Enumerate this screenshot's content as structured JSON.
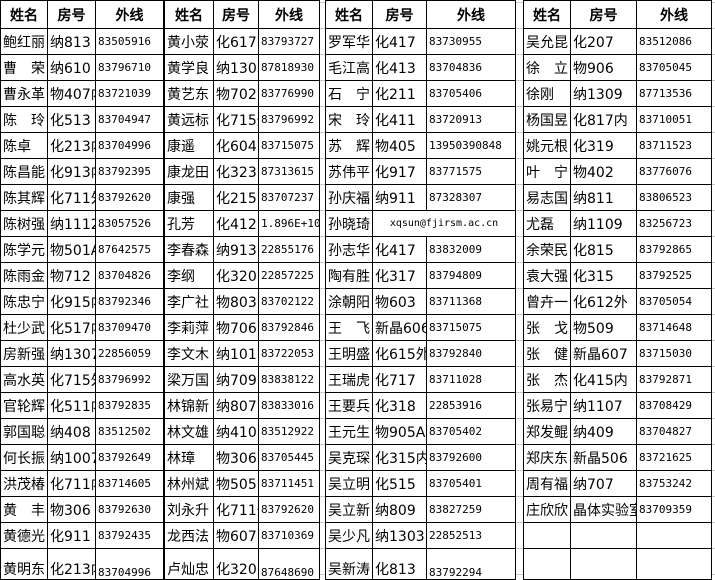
{
  "headers": {
    "name": "姓名",
    "room": "房号",
    "ext": "外线"
  },
  "groups": [
    {
      "rows": [
        [
          "鲍红丽",
          "纳813",
          "83505916"
        ],
        [
          "曹　荣",
          "纳610",
          "83796710"
        ],
        [
          "曹永革",
          "物407内",
          "83721039"
        ],
        [
          "陈　玲",
          "化513",
          "83704947"
        ],
        [
          "陈卓",
          "化213内",
          "83704996"
        ],
        [
          "陈昌能",
          "化913内",
          "83792395"
        ],
        [
          "陈其辉",
          "化711外",
          "83792620"
        ],
        [
          "陈树强",
          "纳1112",
          "83057526"
        ],
        [
          "陈学元",
          "物501A",
          "87642575"
        ],
        [
          "陈雨金",
          "物712",
          "83704826"
        ],
        [
          "陈忠宁",
          "化915内",
          "83792346"
        ],
        [
          "杜少武",
          "化517内",
          "83709470"
        ],
        [
          "房新强",
          "纳1307",
          "22856059"
        ],
        [
          "高水英",
          "化715外",
          "83796992"
        ],
        [
          "官轮辉",
          "化511内",
          "83792835"
        ],
        [
          "郭国聪",
          "纳408",
          "83512502"
        ],
        [
          "何长振",
          "纳1007",
          "83792649"
        ],
        [
          "洪茂椿",
          "化711内",
          "83714605"
        ],
        [
          "黄　丰",
          "物306",
          "83792630"
        ],
        [
          "黄德光",
          "化911",
          "83792435"
        ],
        [
          "黄明东",
          "化213内",
          "83704996"
        ]
      ]
    },
    {
      "rows": [
        [
          "黄小荥",
          "化617内",
          "83793727"
        ],
        [
          "黄学良",
          "纳1305",
          "87818930"
        ],
        [
          "黄艺东",
          "物702",
          "83776990"
        ],
        [
          "黄远标",
          "化715外",
          "83796992"
        ],
        [
          "康遥",
          "化604",
          "83715075"
        ],
        [
          "康龙田",
          "化323",
          "87313615"
        ],
        [
          "康强",
          "化215",
          "83707237"
        ],
        [
          "孔芳",
          "化412",
          "1.896E+10"
        ],
        [
          "李春森",
          "纳913",
          "22855176"
        ],
        [
          "李纲",
          "化320",
          "22857225"
        ],
        [
          "李广社",
          "物803",
          "83702122"
        ],
        [
          "李莉萍",
          "物706",
          "83792846"
        ],
        [
          "李文木",
          "纳1011",
          "83722053"
        ],
        [
          "梁万国",
          "纳709",
          "83838122"
        ],
        [
          "林锦新",
          "纳807",
          "83833016"
        ],
        [
          "林文雄",
          "纳410",
          "83512922"
        ],
        [
          "林璋",
          "物306",
          "83705445"
        ],
        [
          "林州斌",
          "物505",
          "83711451"
        ],
        [
          "刘永升",
          "化711外",
          "83792620"
        ],
        [
          "龙西法",
          "物607",
          "83710369"
        ],
        [
          "卢灿忠",
          "化320",
          "87648690"
        ]
      ]
    },
    {
      "rows": [
        [
          "罗军华",
          "化417",
          "83730955"
        ],
        [
          "毛江高",
          "化413",
          "83704836"
        ],
        [
          "石　宁",
          "化211",
          "83705406"
        ],
        [
          "宋　玲",
          "化411",
          "83720913"
        ],
        [
          "苏　辉",
          "物405",
          "13950390848"
        ],
        [
          "苏伟平",
          "化917",
          "83771575"
        ],
        [
          "孙庆福",
          "纳911",
          "87328307"
        ],
        [
          "孙晓琦",
          "xqsun@fjirsm.ac.cn",
          ""
        ],
        [
          "孙志华",
          "化417",
          "83832009"
        ],
        [
          "陶有胜",
          "化317",
          "83794809"
        ],
        [
          "涂朝阳",
          "物603",
          "83711368"
        ],
        [
          "王　飞",
          "新晶606",
          "83715075"
        ],
        [
          "王明盛",
          "化615外",
          "83792840"
        ],
        [
          "王瑞虎",
          "化717",
          "83711028"
        ],
        [
          "王要兵",
          "化318",
          "22853916"
        ],
        [
          "王元生",
          "物905A",
          "83705402"
        ],
        [
          "吴克琛",
          "化315内",
          "83792600"
        ],
        [
          "吴立明",
          "化515",
          "83705401"
        ],
        [
          "吴立新",
          "纳809",
          "83827259"
        ],
        [
          "吴少凡",
          "纳1303",
          "22852513"
        ],
        [
          "吴新涛",
          "化813",
          "83792294"
        ]
      ]
    },
    {
      "rows": [
        [
          "吴允昆",
          "化207",
          "83512086"
        ],
        [
          "徐　立",
          "物906",
          "83705045"
        ],
        [
          "徐刚",
          "纳1309",
          "87713536"
        ],
        [
          "杨国昱",
          "化817内",
          "83710051"
        ],
        [
          "姚元根",
          "化319",
          "83711523"
        ],
        [
          "叶　宁",
          "物402",
          "83776076"
        ],
        [
          "易志国",
          "纳811",
          "83806523"
        ],
        [
          "尤磊",
          "纳1109",
          "83256723"
        ],
        [
          "余荣民",
          "化815",
          "83792865"
        ],
        [
          "袁大强",
          "化315",
          "83792525"
        ],
        [
          "曾卉一",
          "化612外",
          "83705054"
        ],
        [
          "张　戈",
          "物509",
          "83714648"
        ],
        [
          "张　健",
          "新晶607",
          "83715030"
        ],
        [
          "张　杰",
          "化415内",
          "83792871"
        ],
        [
          "张易宁",
          "纳1107",
          "83708429"
        ],
        [
          "郑发鲲",
          "纳409",
          "83704827"
        ],
        [
          "郑庆东",
          "新晶506",
          "83721625"
        ],
        [
          "周有福",
          "纳707",
          "83753242"
        ],
        [
          "庄欣欣",
          "晶体实验室",
          "83709359"
        ],
        [
          "",
          "",
          ""
        ],
        [
          "",
          "",
          ""
        ]
      ]
    }
  ]
}
